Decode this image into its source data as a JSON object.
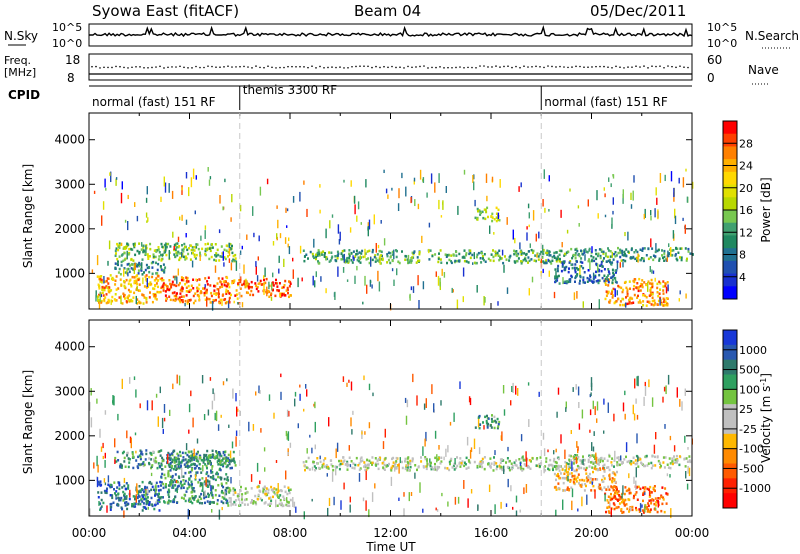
{
  "header": {
    "station": "Syowa East (fitACF)",
    "beam": "Beam 04",
    "date": "05/Dec/2011"
  },
  "labels": {
    "nsky": "N.Sky",
    "nsearch": "N.Search",
    "freq_line1": "Freq.",
    "freq_line2": "[MHz]",
    "nave": "Nave",
    "cpid": "CPID",
    "nsky_ticks": [
      "10^5",
      "10^0"
    ],
    "nsearch_ticks": [
      "10^5",
      "10^0"
    ],
    "freq_ticks": [
      "18",
      "8"
    ],
    "nave_ticks": [
      "60",
      "0"
    ]
  },
  "cpid_segments": [
    {
      "label": "normal (fast) 151 RF",
      "start_h": 0,
      "end_h": 6
    },
    {
      "label": "themis 3300 RF",
      "start_h": 6,
      "end_h": 18
    },
    {
      "label": "normal (fast) 151 RF",
      "start_h": 18,
      "end_h": 24
    }
  ],
  "power_bar": {
    "label": "Power [dB]",
    "ticks": [
      "28",
      "24",
      "20",
      "16",
      "12",
      "8",
      "4"
    ],
    "colors": [
      "#ff0000",
      "#ff4000",
      "#ff8000",
      "#ffb000",
      "#ffd800",
      "#e0e000",
      "#b8d800",
      "#78c850",
      "#40a070",
      "#208860",
      "#207090",
      "#2050b0",
      "#1830d0",
      "#0000ff"
    ]
  },
  "velocity_bar": {
    "label": "Velocity [m s",
    "label_sup": "-1",
    "label_end": "]",
    "ticks": [
      "1000",
      "500",
      "100",
      "25",
      "-25",
      "-100",
      "-500",
      "-1000"
    ],
    "colors": [
      "#1838d8",
      "#2858b0",
      "#2f7a6c",
      "#2fa060",
      "#74c440",
      "#c0c0c0",
      "#c0c0c0",
      "#ffb800",
      "#ff8a00",
      "#ff5a00",
      "#ff2000",
      "#ff0000"
    ]
  },
  "chart_data": {
    "type": "heatmap",
    "xlabel": "Time UT",
    "x_ticks": [
      "00:00",
      "04:00",
      "08:00",
      "12:00",
      "16:00",
      "20:00",
      "00:00"
    ],
    "xlim_hours": [
      0,
      24
    ],
    "ylabel": "Slant Range [km]",
    "y_ticks": [
      1000,
      2000,
      3000,
      4000
    ],
    "ylim_km": [
      200,
      4600
    ],
    "dashed_lines_hours": [
      6,
      18
    ],
    "power_blobs": [
      {
        "t0": 0.3,
        "t1": 2.8,
        "r0": 350,
        "r1": 1000,
        "level": 0.75
      },
      {
        "t0": 2.8,
        "t1": 6.0,
        "r0": 350,
        "r1": 950,
        "level": 0.85
      },
      {
        "t0": 6.0,
        "t1": 8.0,
        "r0": 500,
        "r1": 900,
        "level": 0.9
      },
      {
        "t0": 1.0,
        "t1": 5.8,
        "r0": 1300,
        "r1": 1700,
        "level": 0.45
      },
      {
        "t0": 1.0,
        "t1": 3.0,
        "r0": 1000,
        "r1": 1300,
        "level": 0.3
      },
      {
        "t0": 8.5,
        "t1": 19.0,
        "r0": 1250,
        "r1": 1550,
        "level": 0.4
      },
      {
        "t0": 15.3,
        "t1": 16.3,
        "r0": 2200,
        "r1": 2500,
        "level": 0.55
      },
      {
        "t0": 19.0,
        "t1": 24.0,
        "r0": 1300,
        "r1": 1600,
        "level": 0.35
      },
      {
        "t0": 20.5,
        "t1": 23.0,
        "r0": 300,
        "r1": 900,
        "level": 0.8
      },
      {
        "t0": 18.5,
        "t1": 21.0,
        "r0": 800,
        "r1": 1300,
        "level": 0.2
      }
    ],
    "velocity_blobs": [
      {
        "t0": 0.3,
        "t1": 2.8,
        "r0": 350,
        "r1": 1000,
        "level": 0.85
      },
      {
        "t0": 2.8,
        "t1": 5.5,
        "r0": 500,
        "r1": 1600,
        "level": 0.78
      },
      {
        "t0": 5.5,
        "t1": 8.0,
        "r0": 450,
        "r1": 900,
        "level": 0.55
      },
      {
        "t0": 1.0,
        "t1": 5.8,
        "r0": 1300,
        "r1": 1700,
        "level": 0.75
      },
      {
        "t0": 8.5,
        "t1": 19.0,
        "r0": 1250,
        "r1": 1550,
        "level": 0.55
      },
      {
        "t0": 15.3,
        "t1": 16.3,
        "r0": 2200,
        "r1": 2500,
        "level": 0.75
      },
      {
        "t0": 19.0,
        "t1": 24.0,
        "r0": 1300,
        "r1": 1600,
        "level": 0.55
      },
      {
        "t0": 20.5,
        "t1": 23.0,
        "r0": 300,
        "r1": 900,
        "level": 0.2
      },
      {
        "t0": 18.5,
        "t1": 21.0,
        "r0": 800,
        "r1": 1300,
        "level": 0.35
      }
    ]
  }
}
